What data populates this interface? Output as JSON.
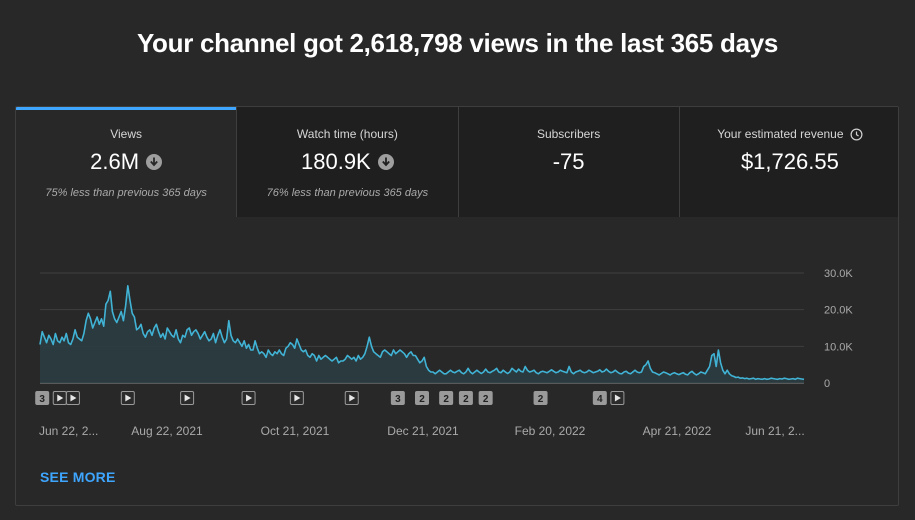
{
  "headline": "Your channel got 2,618,798 views in the last 365 days",
  "tabs": [
    {
      "title": "Views",
      "value": "2.6M",
      "note": "75% less than previous 365 days",
      "trend_icon": "arrow-down-circle-icon"
    },
    {
      "title": "Watch time (hours)",
      "value": "180.9K",
      "note": "76% less than previous 365 days",
      "trend_icon": "arrow-down-circle-icon"
    },
    {
      "title": "Subscribers",
      "value": "-75",
      "note": ""
    },
    {
      "title": "Your estimated revenue",
      "value": "$1,726.55",
      "note": "",
      "title_icon": "clock-icon"
    }
  ],
  "see_more": "SEE MORE",
  "colors": {
    "accent": "#3ea6ff",
    "line": "#41b4d6",
    "area": "#2a3d43"
  },
  "chart_data": {
    "type": "area",
    "x_tick_labels": [
      "Jun 22, 2...",
      "Aug 22, 2021",
      "Oct 21, 2021",
      "Dec 21, 2021",
      "Feb 20, 2022",
      "Apr 21, 2022",
      "Jun 21, 2..."
    ],
    "y_ticks": [
      0,
      10000,
      20000,
      30000
    ],
    "y_tick_labels": [
      "0",
      "10.0K",
      "20.0K",
      "30.0K"
    ],
    "ylim": [
      0,
      30000
    ],
    "grid": true,
    "series": [
      {
        "values": [
          10500,
          14000,
          12500,
          11000,
          13000,
          12000,
          10500,
          13500,
          11500,
          11000,
          12500,
          11500,
          13500,
          11000,
          10500,
          12000,
          14500,
          12500,
          12000,
          11500,
          13500,
          17000,
          19000,
          17500,
          15000,
          16500,
          18000,
          16000,
          17500,
          15500,
          21500,
          22500,
          25000,
          19500,
          17500,
          16500,
          18000,
          19500,
          17000,
          21000,
          26500,
          22500,
          19000,
          18000,
          14500,
          15000,
          16000,
          13500,
          12500,
          14000,
          14500,
          13000,
          15000,
          16000,
          14000,
          12500,
          13500,
          12000,
          15000,
          14000,
          13000,
          12500,
          14500,
          12000,
          11000,
          13000,
          12500,
          14500,
          15000,
          13000,
          14000,
          14500,
          13500,
          12000,
          13000,
          14000,
          12500,
          11500,
          12000,
          13500,
          11000,
          13000,
          14500,
          12500,
          11000,
          12000,
          17000,
          13000,
          11500,
          11000,
          12000,
          11000,
          10000,
          11500,
          9500,
          10500,
          9000,
          9000,
          11500,
          9500,
          8000,
          8500,
          8000,
          7000,
          9000,
          8000,
          7500,
          8500,
          8000,
          9000,
          8000,
          7500,
          9500,
          10000,
          11000,
          10500,
          9500,
          12000,
          10500,
          9000,
          8500,
          9000,
          7500,
          7000,
          8000,
          7500,
          6000,
          7500,
          6500,
          7000,
          7500,
          7000,
          6500,
          6000,
          6500,
          7000,
          5500,
          6000,
          6000,
          6500,
          7500,
          7000,
          6500,
          7000,
          6000,
          7500,
          6500,
          7000,
          8000,
          10000,
          12500,
          10000,
          8500,
          8000,
          7500,
          7000,
          8500,
          9000,
          8500,
          8000,
          7500,
          9000,
          8000,
          8500,
          9000,
          8500,
          8000,
          7000,
          8000,
          8500,
          7500,
          7500,
          6500,
          5500,
          6000,
          7000,
          4500,
          3500,
          3000,
          3000,
          2500,
          3000,
          3500,
          3000,
          2500,
          2500,
          3000,
          3500,
          3000,
          2800,
          3200,
          3500,
          2800,
          2500,
          3000,
          4000,
          3000,
          2500,
          3000,
          3500,
          3000,
          2600,
          3000,
          3800,
          3000,
          2800,
          3200,
          3500,
          4000,
          3000,
          2800,
          3500,
          3000,
          2600,
          3000,
          4000,
          3500,
          3000,
          3800,
          3200,
          3000,
          4500,
          3500,
          3000,
          3200,
          3500,
          2800,
          2500,
          3000,
          3200,
          3000,
          2800,
          3200,
          3600,
          3200,
          2800,
          3000,
          3500,
          3200,
          3000,
          2800,
          4500,
          3000,
          2500,
          3000,
          3200,
          3500,
          3000,
          2800,
          3000,
          3500,
          3200,
          2800,
          3000,
          3200,
          3600,
          3000,
          3200,
          3800,
          3200,
          2800,
          3000,
          3500,
          3000,
          2600,
          2500,
          3000,
          3200,
          2700,
          2500,
          3000,
          3500,
          3000,
          2800,
          3000,
          4500,
          5000,
          6000,
          4000,
          3000,
          2800,
          2500,
          2200,
          2600,
          3000,
          2800,
          2500,
          2200,
          2600,
          2800,
          2500,
          2300,
          2600,
          2800,
          2400,
          2200,
          2800,
          3200,
          2600,
          2200,
          2500,
          3000,
          2800,
          2500,
          3500,
          4500,
          7500,
          8000,
          4500,
          9000,
          5500,
          3500,
          2500,
          3500,
          2500,
          2000,
          1800,
          1500,
          1600,
          1300,
          1400,
          1200,
          1300,
          1100,
          1200,
          1300,
          1000,
          1200,
          1100,
          1000,
          1200,
          1000,
          1100,
          1300,
          1200,
          1100,
          1000,
          1200,
          1100,
          1300,
          1200,
          1000,
          1100,
          1200,
          1000,
          1300,
          1200,
          1100,
          1000
        ]
      }
    ],
    "video_markers": [
      {
        "label": "3",
        "icon": "",
        "index": 1
      },
      {
        "label": "",
        "icon": "play-icon",
        "index": 9
      },
      {
        "label": "",
        "icon": "play-icon",
        "index": 15
      },
      {
        "label": "",
        "icon": "play-icon",
        "index": 40
      },
      {
        "label": "",
        "icon": "play-icon",
        "index": 67
      },
      {
        "label": "",
        "icon": "play-icon",
        "index": 95
      },
      {
        "label": "",
        "icon": "play-icon",
        "index": 117
      },
      {
        "label": "",
        "icon": "play-icon",
        "index": 142
      },
      {
        "label": "3",
        "icon": "",
        "index": 163
      },
      {
        "label": "2",
        "icon": "",
        "index": 174
      },
      {
        "label": "2",
        "icon": "",
        "index": 185
      },
      {
        "label": "2",
        "icon": "",
        "index": 194
      },
      {
        "label": "2",
        "icon": "",
        "index": 203
      },
      {
        "label": "2",
        "icon": "",
        "index": 228
      },
      {
        "label": "4",
        "icon": "",
        "index": 255
      },
      {
        "label": "",
        "icon": "play-icon",
        "index": 263
      }
    ]
  }
}
